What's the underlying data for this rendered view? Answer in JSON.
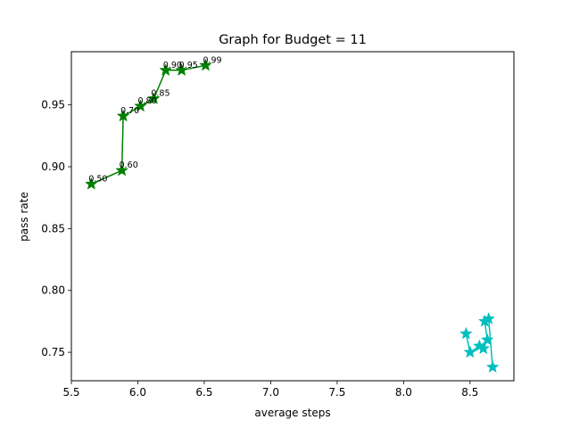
{
  "chart_data": {
    "type": "line",
    "title": "Graph for Budget = 11",
    "xlabel": "average steps",
    "ylabel": "pass rate",
    "xlim": [
      5.5,
      8.83
    ],
    "ylim": [
      0.727,
      0.993
    ],
    "xticks": [
      5.5,
      6.0,
      6.5,
      7.0,
      7.5,
      8.0,
      8.5
    ],
    "xtick_labels": [
      "5.5",
      "6.0",
      "6.5",
      "7.0",
      "7.5",
      "8.0",
      "8.5"
    ],
    "yticks": [
      0.75,
      0.8,
      0.85,
      0.9,
      0.95
    ],
    "ytick_labels": [
      "0.75",
      "0.80",
      "0.85",
      "0.90",
      "0.95"
    ],
    "grid": false,
    "legend": "none",
    "series": [
      {
        "color": "#008000",
        "marker": "star",
        "points": [
          {
            "x": 5.65,
            "y": 0.886,
            "label": "0.50"
          },
          {
            "x": 5.88,
            "y": 0.897,
            "label": "0.60"
          },
          {
            "x": 5.89,
            "y": 0.941,
            "label": "0.70"
          },
          {
            "x": 6.02,
            "y": 0.949,
            "label": "0.80"
          },
          {
            "x": 6.12,
            "y": 0.955,
            "label": "0.85"
          },
          {
            "x": 6.21,
            "y": 0.978,
            "label": "0.90"
          },
          {
            "x": 6.33,
            "y": 0.978,
            "label": "0.95"
          },
          {
            "x": 6.51,
            "y": 0.982,
            "label": "0.99"
          }
        ]
      },
      {
        "color": "#00bfbf",
        "marker": "star",
        "points": [
          {
            "x": 8.47,
            "y": 0.765
          },
          {
            "x": 8.5,
            "y": 0.75
          },
          {
            "x": 8.57,
            "y": 0.755
          },
          {
            "x": 8.6,
            "y": 0.753
          },
          {
            "x": 8.63,
            "y": 0.76
          },
          {
            "x": 8.61,
            "y": 0.775
          },
          {
            "x": 8.64,
            "y": 0.777
          },
          {
            "x": 8.67,
            "y": 0.738
          }
        ]
      }
    ]
  }
}
